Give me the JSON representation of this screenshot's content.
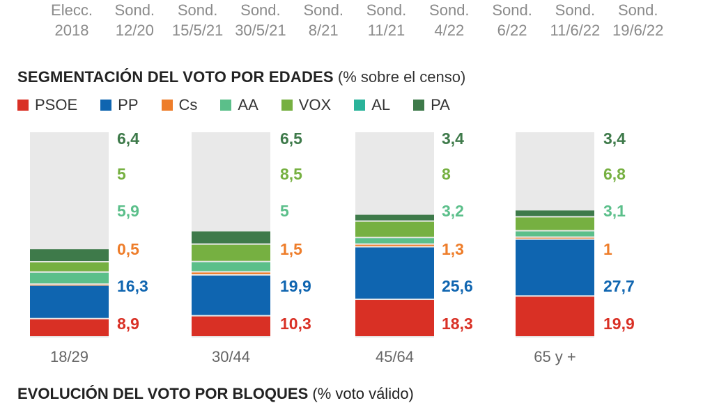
{
  "top_axis": {
    "ticks": [
      {
        "line1": "Elecc.",
        "line2": "2018"
      },
      {
        "line1": "Sond.",
        "line2": "12/20"
      },
      {
        "line1": "Sond.",
        "line2": "15/5/21"
      },
      {
        "line1": "Sond.",
        "line2": "30/5/21"
      },
      {
        "line1": "Sond.",
        "line2": "8/21"
      },
      {
        "line1": "Sond.",
        "line2": "11/21"
      },
      {
        "line1": "Sond.",
        "line2": "4/22"
      },
      {
        "line1": "Sond.",
        "line2": "6/22"
      },
      {
        "line1": "Sond.",
        "line2": "11/6/22"
      },
      {
        "line1": "Sond.",
        "line2": "19/6/22"
      }
    ]
  },
  "section_title": {
    "bold": "SEGMENTACIÓN DEL VOTO POR EDADES",
    "subtitle": "(% sobre el censo)"
  },
  "legend": [
    {
      "name": "PSOE",
      "color": "#d93025"
    },
    {
      "name": "PP",
      "color": "#0f65b0"
    },
    {
      "name": "Cs",
      "color": "#ee7d2a"
    },
    {
      "name": "AA",
      "color": "#5bbf8a"
    },
    {
      "name": "VOX",
      "color": "#76b041"
    },
    {
      "name": "AL",
      "color": "#2ab39a"
    },
    {
      "name": "PA",
      "color": "#3e7a4a"
    }
  ],
  "chart_data": {
    "type": "bar",
    "stacked": true,
    "title": "SEGMENTACIÓN DEL VOTO POR EDADES",
    "subtitle": "(% sobre el censo)",
    "categories": [
      "18/29",
      "30/44",
      "45/64",
      "65 y +"
    ],
    "ylim": [
      0,
      100
    ],
    "series": [
      {
        "name": "PSOE",
        "color": "#d93025",
        "values": [
          8.9,
          10.3,
          18.3,
          19.9
        ]
      },
      {
        "name": "PP",
        "color": "#0f65b0",
        "values": [
          16.3,
          19.9,
          25.6,
          27.7
        ]
      },
      {
        "name": "Cs",
        "color": "#ee7d2a",
        "values": [
          0.5,
          1.5,
          1.3,
          1
        ]
      },
      {
        "name": "AA",
        "color": "#5bbf8a",
        "values": [
          5.9,
          5,
          3.2,
          3.1
        ]
      },
      {
        "name": "VOX",
        "color": "#76b041",
        "values": [
          5,
          8.5,
          8,
          6.8
        ]
      },
      {
        "name": "PA",
        "color": "#3e7a4a",
        "values": [
          6.4,
          6.5,
          3.4,
          3.4
        ]
      }
    ],
    "labels": [
      [
        "6,4",
        "5",
        "5,9",
        "0,5",
        "16,3",
        "8,9"
      ],
      [
        "6,5",
        "8,5",
        "5",
        "1,5",
        "19,9",
        "10,3"
      ],
      [
        "3,4",
        "8",
        "3,2",
        "1,3",
        "25,6",
        "18,3"
      ],
      [
        "3,4",
        "6,8",
        "3,1",
        "1",
        "27,7",
        "19,9"
      ]
    ],
    "label_series_order": [
      "PA",
      "VOX",
      "AA",
      "Cs",
      "PP",
      "PSOE"
    ]
  },
  "bottom_title": {
    "bold": "EVOLUCIÓN DEL VOTO POR BLOQUES",
    "subtitle": "(% voto válido)"
  }
}
